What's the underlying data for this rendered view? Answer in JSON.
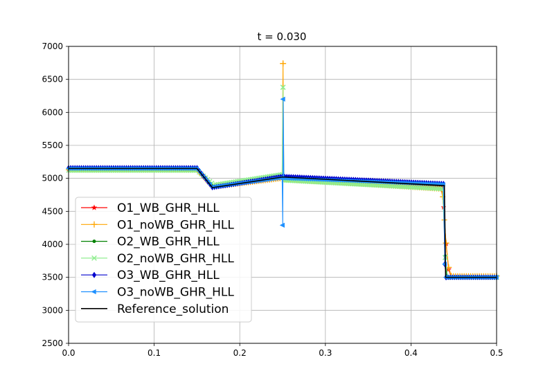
{
  "chart_data": {
    "type": "line",
    "title": "t = 0.030",
    "xlabel": "",
    "ylabel": "",
    "xlim": [
      0.0,
      0.5
    ],
    "ylim": [
      2500,
      7000
    ],
    "xticks": [
      "0.0",
      "0.1",
      "0.2",
      "0.3",
      "0.4",
      "0.5"
    ],
    "yticks": [
      "2500",
      "3000",
      "3500",
      "4000",
      "4500",
      "5000",
      "5500",
      "6000",
      "6500",
      "7000"
    ],
    "grid": true,
    "legend_position": "lower-left",
    "series": [
      {
        "name": "O1_WB_GHR_HLL",
        "color": "#ff0000",
        "marker": "star",
        "points": [
          [
            0.0,
            5140
          ],
          [
            0.15,
            5140
          ],
          [
            0.168,
            4880
          ],
          [
            0.25,
            5010
          ],
          [
            0.25,
            5010
          ],
          [
            0.436,
            4870
          ],
          [
            0.438,
            4560
          ],
          [
            0.441,
            4010
          ],
          [
            0.444,
            3620
          ],
          [
            0.447,
            3510
          ],
          [
            0.5,
            3510
          ]
        ]
      },
      {
        "name": "O1_noWB_GHR_HLL",
        "color": "#ffa500",
        "marker": "plus",
        "points": [
          [
            0.0,
            5130
          ],
          [
            0.15,
            5130
          ],
          [
            0.168,
            4870
          ],
          [
            0.2495,
            5000
          ],
          [
            0.2505,
            6740
          ],
          [
            0.2515,
            4990
          ],
          [
            0.435,
            4840
          ],
          [
            0.437,
            4720
          ],
          [
            0.441,
            4020
          ],
          [
            0.444,
            3650
          ],
          [
            0.447,
            3520
          ],
          [
            0.5,
            3520
          ]
        ]
      },
      {
        "name": "O2_WB_GHR_HLL",
        "color": "#008000",
        "marker": "dot",
        "points": [
          [
            0.0,
            5150
          ],
          [
            0.15,
            5150
          ],
          [
            0.169,
            4880
          ],
          [
            0.25,
            5020
          ],
          [
            0.438,
            4900
          ],
          [
            0.44,
            3820
          ],
          [
            0.442,
            3500
          ],
          [
            0.5,
            3500
          ]
        ]
      },
      {
        "name": "O2_noWB_GHR_HLL",
        "color": "#90ee90",
        "marker": "x",
        "points": [
          [
            0.0,
            5120
          ],
          [
            0.15,
            5120
          ],
          [
            0.17,
            4900
          ],
          [
            0.2495,
            5060
          ],
          [
            0.2505,
            6380
          ],
          [
            0.2515,
            4970
          ],
          [
            0.437,
            4840
          ],
          [
            0.44,
            3800
          ],
          [
            0.443,
            3500
          ],
          [
            0.5,
            3500
          ]
        ]
      },
      {
        "name": "O3_WB_GHR_HLL",
        "color": "#0000cd",
        "marker": "diamond",
        "points": [
          [
            0.0,
            5160
          ],
          [
            0.15,
            5160
          ],
          [
            0.168,
            4860
          ],
          [
            0.25,
            5030
          ],
          [
            0.438,
            4920
          ],
          [
            0.4395,
            3700
          ],
          [
            0.441,
            3500
          ],
          [
            0.5,
            3500
          ]
        ]
      },
      {
        "name": "O3_noWB_GHR_HLL",
        "color": "#1e90ff",
        "marker": "triangle-left",
        "points": [
          [
            0.0,
            5150
          ],
          [
            0.15,
            5150
          ],
          [
            0.168,
            4870
          ],
          [
            0.2495,
            5010
          ],
          [
            0.2502,
            4290
          ],
          [
            0.2508,
            6200
          ],
          [
            0.2515,
            5000
          ],
          [
            0.438,
            4910
          ],
          [
            0.4397,
            3700
          ],
          [
            0.441,
            3500
          ],
          [
            0.5,
            3500
          ]
        ]
      },
      {
        "name": "Reference_solution",
        "color": "#000000",
        "marker": "none",
        "points": [
          [
            0.0,
            5150
          ],
          [
            0.15,
            5150
          ],
          [
            0.168,
            4860
          ],
          [
            0.25,
            5020
          ],
          [
            0.439,
            4890
          ],
          [
            0.4405,
            3500
          ],
          [
            0.5,
            3500
          ]
        ]
      }
    ]
  }
}
